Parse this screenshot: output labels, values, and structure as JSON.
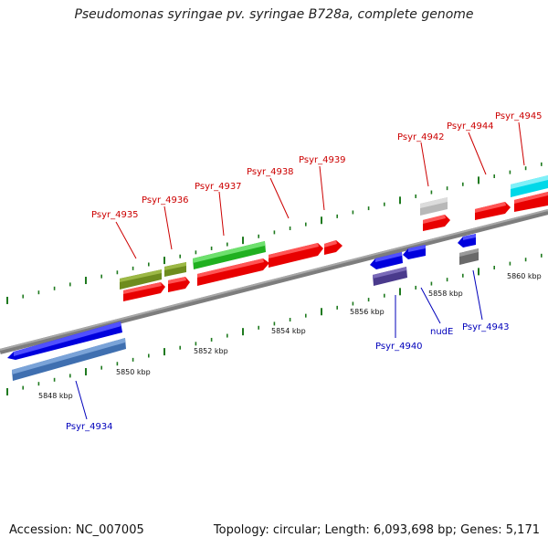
{
  "title": "Pseudomonas syringae pv. syringae B728a, complete genome",
  "footer": {
    "accession": "Accession: NC_007005",
    "summary": "Topology: circular; Length: 6,093,698 bp; Genes: 5,171"
  },
  "colors": {
    "forward_label": "#cc0000",
    "reverse_label": "#0000bb",
    "backbone": "#8c8c8c",
    "tick": "#1f7a1f"
  },
  "ticks": [
    {
      "label": "5848 kbp"
    },
    {
      "label": "5850 kbp"
    },
    {
      "label": "5852 kbp"
    },
    {
      "label": "5854 kbp"
    },
    {
      "label": "5856 kbp"
    },
    {
      "label": "5858 kbp"
    },
    {
      "label": "5860 kbp"
    }
  ],
  "labels": {
    "forward": [
      "Psyr_4935",
      "Psyr_4936",
      "Psyr_4937",
      "Psyr_4938",
      "Psyr_4939",
      "Psyr_4942",
      "Psyr_4944",
      "Psyr_4945"
    ],
    "reverse": [
      "Psyr_4934",
      "Psyr_4940",
      "nudE",
      "Psyr_4943"
    ]
  }
}
